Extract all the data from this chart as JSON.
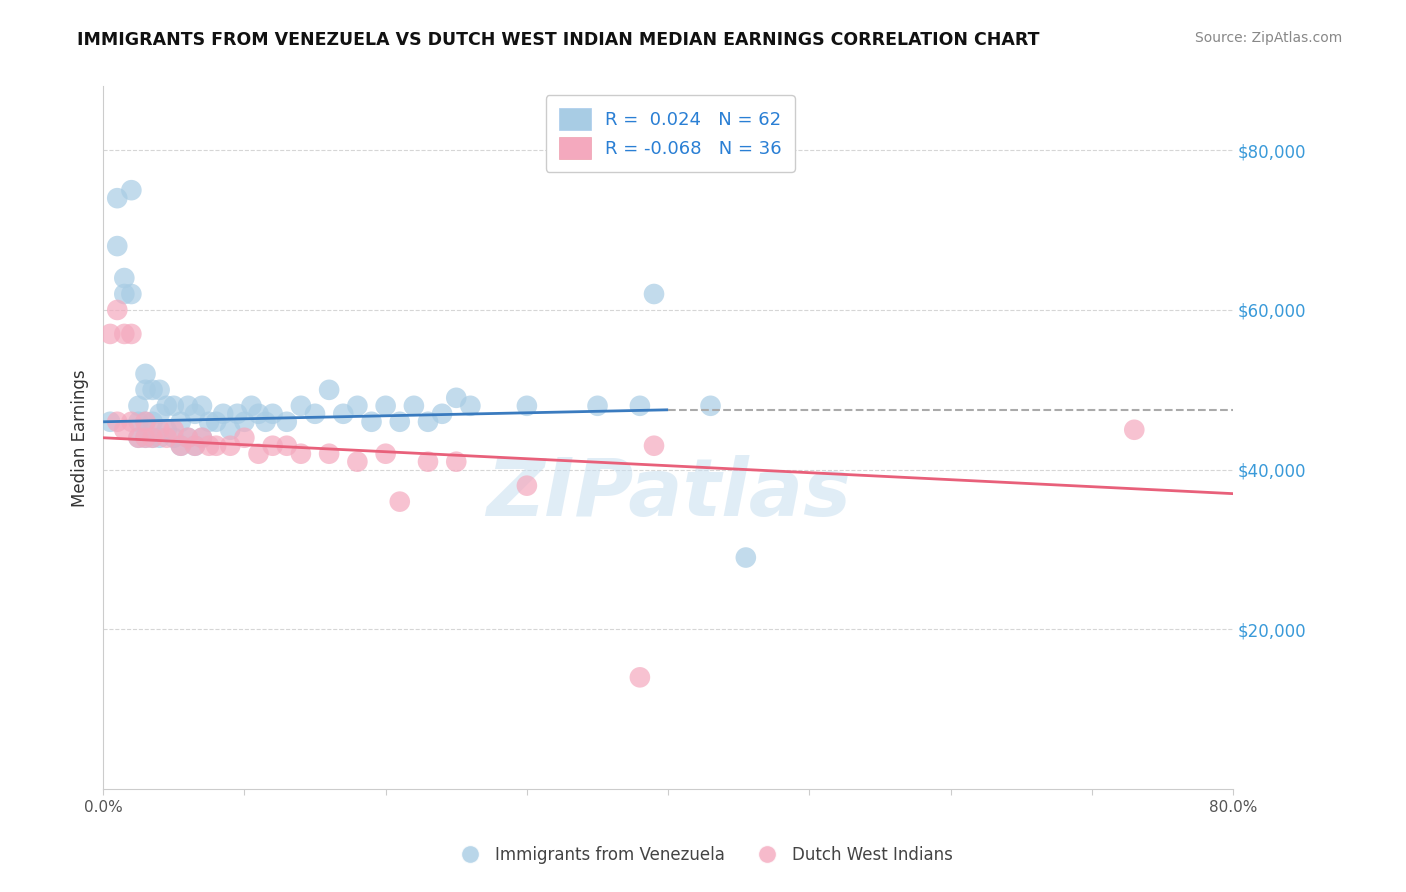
{
  "title": "IMMIGRANTS FROM VENEZUELA VS DUTCH WEST INDIAN MEDIAN EARNINGS CORRELATION CHART",
  "source": "Source: ZipAtlas.com",
  "ylabel": "Median Earnings",
  "y_ticks": [
    20000,
    40000,
    60000,
    80000
  ],
  "y_tick_labels": [
    "$20,000",
    "$40,000",
    "$60,000",
    "$80,000"
  ],
  "xlim": [
    0.0,
    0.8
  ],
  "ylim": [
    0,
    88000
  ],
  "blue_R": 0.024,
  "blue_N": 62,
  "pink_R": -0.068,
  "pink_N": 36,
  "blue_color": "#a8cce4",
  "pink_color": "#f4a9be",
  "blue_line_color": "#3a7bbf",
  "pink_line_color": "#e8607a",
  "legend_label_blue": "Immigrants from Venezuela",
  "legend_label_pink": "Dutch West Indians",
  "watermark": "ZIPatlas",
  "blue_scatter_x": [
    0.005,
    0.01,
    0.01,
    0.015,
    0.015,
    0.02,
    0.02,
    0.025,
    0.025,
    0.025,
    0.03,
    0.03,
    0.03,
    0.03,
    0.035,
    0.035,
    0.035,
    0.04,
    0.04,
    0.04,
    0.045,
    0.045,
    0.05,
    0.05,
    0.055,
    0.055,
    0.06,
    0.06,
    0.065,
    0.065,
    0.07,
    0.07,
    0.075,
    0.08,
    0.085,
    0.09,
    0.095,
    0.1,
    0.105,
    0.11,
    0.115,
    0.12,
    0.13,
    0.14,
    0.15,
    0.16,
    0.17,
    0.18,
    0.19,
    0.2,
    0.21,
    0.22,
    0.23,
    0.24,
    0.25,
    0.26,
    0.3,
    0.35,
    0.38,
    0.39,
    0.43,
    0.455
  ],
  "blue_scatter_y": [
    46000,
    74000,
    68000,
    62000,
    64000,
    75000,
    62000,
    48000,
    46000,
    44000,
    52000,
    50000,
    46000,
    44000,
    50000,
    46000,
    44000,
    50000,
    47000,
    44000,
    48000,
    45000,
    48000,
    44000,
    46000,
    43000,
    48000,
    44000,
    47000,
    43000,
    48000,
    44000,
    46000,
    46000,
    47000,
    45000,
    47000,
    46000,
    48000,
    47000,
    46000,
    47000,
    46000,
    48000,
    47000,
    50000,
    47000,
    48000,
    46000,
    48000,
    46000,
    48000,
    46000,
    47000,
    49000,
    48000,
    48000,
    48000,
    48000,
    62000,
    48000,
    29000
  ],
  "pink_scatter_x": [
    0.005,
    0.01,
    0.01,
    0.015,
    0.015,
    0.02,
    0.02,
    0.025,
    0.03,
    0.03,
    0.035,
    0.04,
    0.045,
    0.05,
    0.055,
    0.06,
    0.065,
    0.07,
    0.075,
    0.08,
    0.09,
    0.1,
    0.11,
    0.12,
    0.13,
    0.14,
    0.16,
    0.18,
    0.2,
    0.21,
    0.23,
    0.25,
    0.3,
    0.38,
    0.39,
    0.73
  ],
  "pink_scatter_y": [
    57000,
    60000,
    46000,
    57000,
    45000,
    57000,
    46000,
    44000,
    46000,
    44000,
    44000,
    45000,
    44000,
    45000,
    43000,
    44000,
    43000,
    44000,
    43000,
    43000,
    43000,
    44000,
    42000,
    43000,
    43000,
    42000,
    42000,
    41000,
    42000,
    36000,
    41000,
    41000,
    38000,
    14000,
    43000,
    45000
  ],
  "blue_trend_x0": 0.0,
  "blue_trend_y0": 46000,
  "blue_trend_x1": 0.4,
  "blue_trend_y1": 47500,
  "blue_trend_dash_x0": 0.4,
  "blue_trend_dash_y0": 47500,
  "blue_trend_dash_x1": 0.8,
  "blue_trend_dash_y1": 47500,
  "pink_trend_x0": 0.0,
  "pink_trend_y0": 44000,
  "pink_trend_x1": 0.8,
  "pink_trend_y1": 37000
}
